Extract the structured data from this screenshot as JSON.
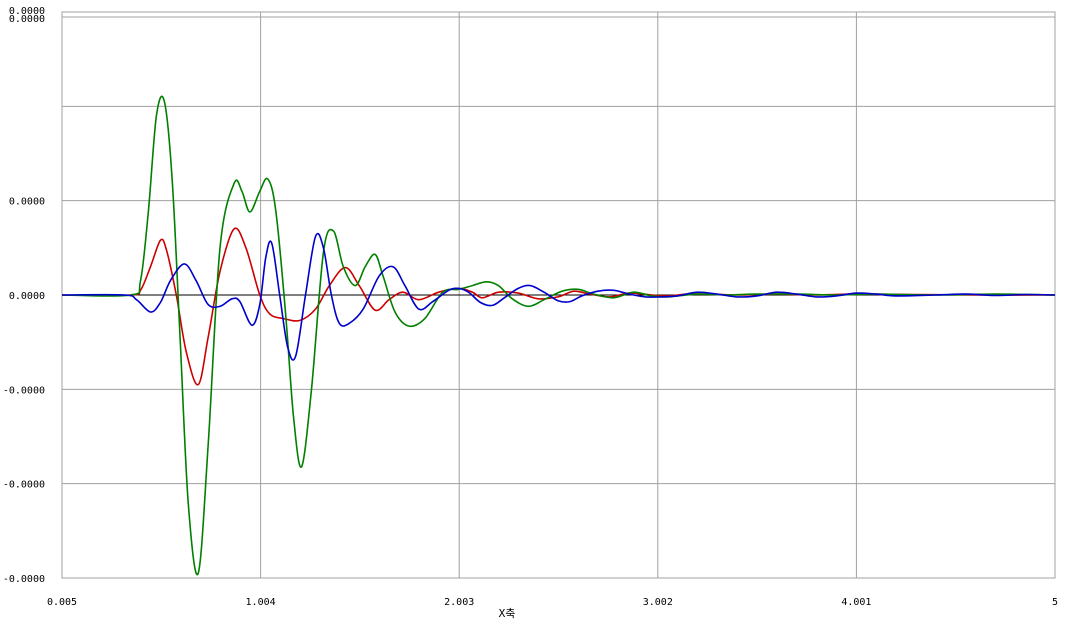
{
  "chart_data": {
    "type": "line",
    "title": "",
    "xlabel": "X축",
    "ylabel": "",
    "grid": true,
    "xlim": [
      0.005,
      5
    ],
    "ylim": [
      -3,
      3
    ],
    "x_tick_labels": [
      "0.005",
      "1.004",
      "2.003",
      "3.002",
      "4.001",
      "5"
    ],
    "y_tick_labels": [
      "0.0000",
      "0.0000",
      "0.0000",
      "0.0000",
      "-0.0000",
      "-0.0000",
      "-0.0000"
    ],
    "y_tick_values": [
      3,
      2,
      1,
      0,
      -1,
      -2,
      -3
    ],
    "series": [
      {
        "color": "#cc0000",
        "points": [
          [
            0.005,
            0
          ],
          [
            0.35,
            0
          ],
          [
            0.4,
            0.05
          ],
          [
            0.45,
            0.3
          ],
          [
            0.5,
            0.58
          ],
          [
            0.53,
            0.48
          ],
          [
            0.58,
            0
          ],
          [
            0.63,
            -0.6
          ],
          [
            0.69,
            -0.95
          ],
          [
            0.74,
            -0.45
          ],
          [
            0.8,
            0.25
          ],
          [
            0.87,
            0.7
          ],
          [
            0.93,
            0.5
          ],
          [
            1.0,
            0
          ],
          [
            1.05,
            -0.2
          ],
          [
            1.12,
            -0.25
          ],
          [
            1.2,
            -0.27
          ],
          [
            1.28,
            -0.15
          ],
          [
            1.35,
            0.1
          ],
          [
            1.43,
            0.29
          ],
          [
            1.5,
            0.1
          ],
          [
            1.58,
            -0.16
          ],
          [
            1.65,
            -0.05
          ],
          [
            1.72,
            0.03
          ],
          [
            1.8,
            -0.05
          ],
          [
            1.9,
            0.03
          ],
          [
            2.0,
            0.07
          ],
          [
            2.07,
            0.03
          ],
          [
            2.12,
            -0.03
          ],
          [
            2.2,
            0.03
          ],
          [
            2.3,
            0.02
          ],
          [
            2.4,
            -0.04
          ],
          [
            2.5,
            -0.02
          ],
          [
            2.58,
            0.04
          ],
          [
            2.66,
            0.01
          ],
          [
            2.76,
            -0.02
          ],
          [
            2.86,
            0.02
          ],
          [
            2.97,
            0
          ],
          [
            3.05,
            -0.01
          ],
          [
            3.15,
            0.01
          ],
          [
            3.25,
            0.01
          ],
          [
            3.4,
            0
          ],
          [
            3.6,
            0.01
          ],
          [
            3.8,
            0
          ],
          [
            4.0,
            0.01
          ],
          [
            4.3,
            0.005
          ],
          [
            4.6,
            0
          ],
          [
            5.0,
            0
          ]
        ]
      },
      {
        "color": "#008000",
        "points": [
          [
            0.005,
            0
          ],
          [
            0.35,
            0
          ],
          [
            0.4,
            0.15
          ],
          [
            0.44,
            0.9
          ],
          [
            0.48,
            1.9
          ],
          [
            0.52,
            2.05
          ],
          [
            0.56,
            1.2
          ],
          [
            0.6,
            -0.5
          ],
          [
            0.64,
            -2.2
          ],
          [
            0.69,
            -2.95
          ],
          [
            0.74,
            -1.6
          ],
          [
            0.8,
            0.5
          ],
          [
            0.87,
            1.18
          ],
          [
            0.91,
            1.1
          ],
          [
            0.95,
            0.88
          ],
          [
            1.0,
            1.1
          ],
          [
            1.04,
            1.23
          ],
          [
            1.08,
            0.9
          ],
          [
            1.13,
            -0.2
          ],
          [
            1.17,
            -1.3
          ],
          [
            1.21,
            -1.82
          ],
          [
            1.26,
            -1.0
          ],
          [
            1.32,
            0.45
          ],
          [
            1.37,
            0.68
          ],
          [
            1.42,
            0.3
          ],
          [
            1.48,
            0.1
          ],
          [
            1.53,
            0.3
          ],
          [
            1.58,
            0.43
          ],
          [
            1.62,
            0.2
          ],
          [
            1.68,
            -0.18
          ],
          [
            1.75,
            -0.33
          ],
          [
            1.83,
            -0.25
          ],
          [
            1.92,
            0.03
          ],
          [
            2.0,
            0.06
          ],
          [
            2.07,
            0.1
          ],
          [
            2.14,
            0.14
          ],
          [
            2.2,
            0.1
          ],
          [
            2.27,
            -0.04
          ],
          [
            2.35,
            -0.12
          ],
          [
            2.43,
            -0.05
          ],
          [
            2.52,
            0.04
          ],
          [
            2.6,
            0.06
          ],
          [
            2.68,
            0.01
          ],
          [
            2.78,
            -0.03
          ],
          [
            2.88,
            0.03
          ],
          [
            2.97,
            -0.01
          ],
          [
            3.05,
            -0.02
          ],
          [
            3.2,
            0.01
          ],
          [
            3.35,
            0
          ],
          [
            3.5,
            0.01
          ],
          [
            3.7,
            0.01
          ],
          [
            3.9,
            0
          ],
          [
            4.1,
            0.01
          ],
          [
            4.4,
            0
          ],
          [
            4.7,
            0.01
          ],
          [
            5.0,
            0
          ]
        ]
      },
      {
        "color": "#0000cc",
        "points": [
          [
            0.005,
            0
          ],
          [
            0.32,
            0
          ],
          [
            0.38,
            -0.05
          ],
          [
            0.45,
            -0.18
          ],
          [
            0.5,
            -0.08
          ],
          [
            0.55,
            0.15
          ],
          [
            0.62,
            0.33
          ],
          [
            0.68,
            0.15
          ],
          [
            0.74,
            -0.1
          ],
          [
            0.8,
            -0.12
          ],
          [
            0.86,
            -0.04
          ],
          [
            0.9,
            -0.07
          ],
          [
            0.96,
            -0.32
          ],
          [
            1.0,
            -0.1
          ],
          [
            1.03,
            0.4
          ],
          [
            1.06,
            0.55
          ],
          [
            1.1,
            0
          ],
          [
            1.14,
            -0.55
          ],
          [
            1.18,
            -0.65
          ],
          [
            1.23,
            0
          ],
          [
            1.28,
            0.62
          ],
          [
            1.32,
            0.5
          ],
          [
            1.36,
            0
          ],
          [
            1.4,
            -0.3
          ],
          [
            1.45,
            -0.3
          ],
          [
            1.52,
            -0.15
          ],
          [
            1.6,
            0.2
          ],
          [
            1.67,
            0.3
          ],
          [
            1.73,
            0.1
          ],
          [
            1.8,
            -0.15
          ],
          [
            1.87,
            -0.07
          ],
          [
            1.95,
            0.05
          ],
          [
            2.0,
            0.07
          ],
          [
            2.05,
            0.03
          ],
          [
            2.11,
            -0.08
          ],
          [
            2.17,
            -0.11
          ],
          [
            2.23,
            -0.03
          ],
          [
            2.3,
            0.07
          ],
          [
            2.36,
            0.1
          ],
          [
            2.43,
            0.03
          ],
          [
            2.5,
            -0.06
          ],
          [
            2.56,
            -0.07
          ],
          [
            2.62,
            -0.01
          ],
          [
            2.7,
            0.04
          ],
          [
            2.78,
            0.05
          ],
          [
            2.86,
            0.01
          ],
          [
            2.94,
            -0.02
          ],
          [
            3.02,
            -0.02
          ],
          [
            3.1,
            -0.01
          ],
          [
            3.2,
            0.03
          ],
          [
            3.3,
            0.01
          ],
          [
            3.4,
            -0.02
          ],
          [
            3.5,
            -0.01
          ],
          [
            3.6,
            0.03
          ],
          [
            3.7,
            0.01
          ],
          [
            3.8,
            -0.02
          ],
          [
            3.9,
            -0.01
          ],
          [
            4.0,
            0.02
          ],
          [
            4.1,
            0.01
          ],
          [
            4.2,
            -0.01
          ],
          [
            4.4,
            0
          ],
          [
            4.55,
            0.01
          ],
          [
            4.7,
            -0.005
          ],
          [
            4.85,
            0.005
          ],
          [
            5.0,
            0
          ]
        ]
      }
    ]
  }
}
